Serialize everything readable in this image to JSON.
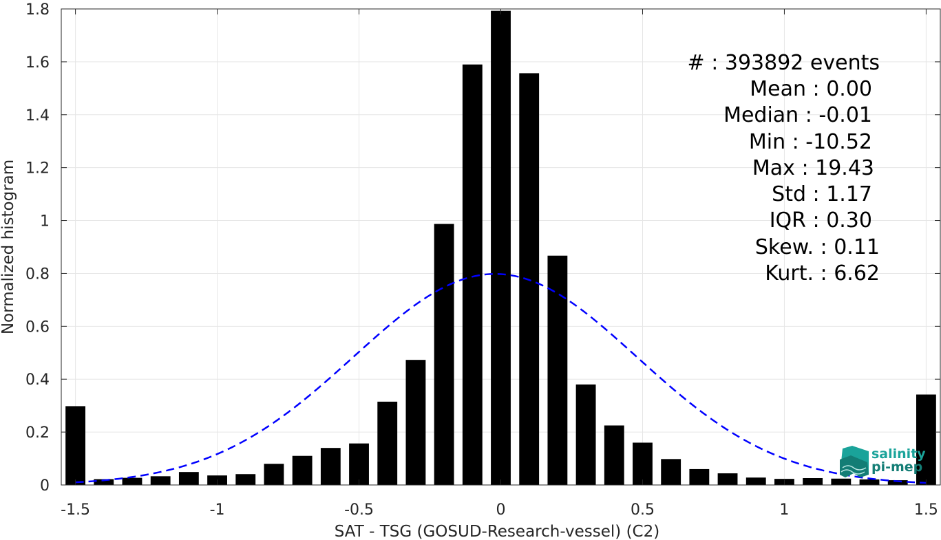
{
  "chart_data": {
    "type": "bar",
    "xlabel": "SAT - TSG (GOSUD-Research-vessel) (C2)",
    "ylabel": "Normalized histogram",
    "xlim": [
      -1.55,
      1.55
    ],
    "ylim": [
      0,
      1.8
    ],
    "xticks": [
      -1.5,
      -1,
      -0.5,
      0,
      0.5,
      1,
      1.5
    ],
    "xtick_labels": [
      "-1.5",
      "-1",
      "-0.5",
      "0",
      "0.5",
      "1",
      "1.5"
    ],
    "yticks": [
      0,
      0.2,
      0.4,
      0.6,
      0.8,
      1,
      1.2,
      1.4,
      1.6,
      1.8
    ],
    "ytick_labels": [
      "0",
      "0.2",
      "0.4",
      "0.6",
      "0.8",
      "1",
      "1.2",
      "1.4",
      "1.6",
      "1.8"
    ],
    "grid": true,
    "bar_color": "#000000",
    "bar_width": 0.07,
    "bins": [
      {
        "x": -1.5,
        "y": 0.298
      },
      {
        "x": -1.4,
        "y": 0.022
      },
      {
        "x": -1.3,
        "y": 0.027
      },
      {
        "x": -1.2,
        "y": 0.033
      },
      {
        "x": -1.1,
        "y": 0.049
      },
      {
        "x": -1.0,
        "y": 0.036
      },
      {
        "x": -0.9,
        "y": 0.041
      },
      {
        "x": -0.8,
        "y": 0.08
      },
      {
        "x": -0.7,
        "y": 0.11
      },
      {
        "x": -0.6,
        "y": 0.14
      },
      {
        "x": -0.5,
        "y": 0.157
      },
      {
        "x": -0.4,
        "y": 0.315
      },
      {
        "x": -0.3,
        "y": 0.473
      },
      {
        "x": -0.2,
        "y": 0.987
      },
      {
        "x": -0.1,
        "y": 1.59
      },
      {
        "x": 0.0,
        "y": 1.793
      },
      {
        "x": 0.1,
        "y": 1.557
      },
      {
        "x": 0.2,
        "y": 0.867
      },
      {
        "x": 0.3,
        "y": 0.38
      },
      {
        "x": 0.4,
        "y": 0.225
      },
      {
        "x": 0.5,
        "y": 0.16
      },
      {
        "x": 0.6,
        "y": 0.098
      },
      {
        "x": 0.7,
        "y": 0.06
      },
      {
        "x": 0.8,
        "y": 0.044
      },
      {
        "x": 0.9,
        "y": 0.028
      },
      {
        "x": 1.0,
        "y": 0.023
      },
      {
        "x": 1.1,
        "y": 0.026
      },
      {
        "x": 1.2,
        "y": 0.024
      },
      {
        "x": 1.3,
        "y": 0.021
      },
      {
        "x": 1.4,
        "y": 0.018
      },
      {
        "x": 1.5,
        "y": 0.342
      }
    ],
    "fit_curve": {
      "type": "gaussian",
      "style": "dashed",
      "color": "#0000ff",
      "mean": -0.02,
      "std": 0.5,
      "x_range": [
        -1.5,
        1.5
      ]
    }
  },
  "stats": {
    "events": "#  : 393892 events",
    "mean": "Mean : 0.00",
    "median": "Median : -0.01",
    "min": "Min : -10.52",
    "max": "Max : 19.43",
    "std": "Std : 1.17",
    "iqr": "IQR : 0.30",
    "skew": "Skew. : 0.11",
    "kurt": "Kurt. : 6.62"
  },
  "logo": {
    "line1": "salinity",
    "line2": "pi-mep",
    "color": "#1aa39a"
  }
}
